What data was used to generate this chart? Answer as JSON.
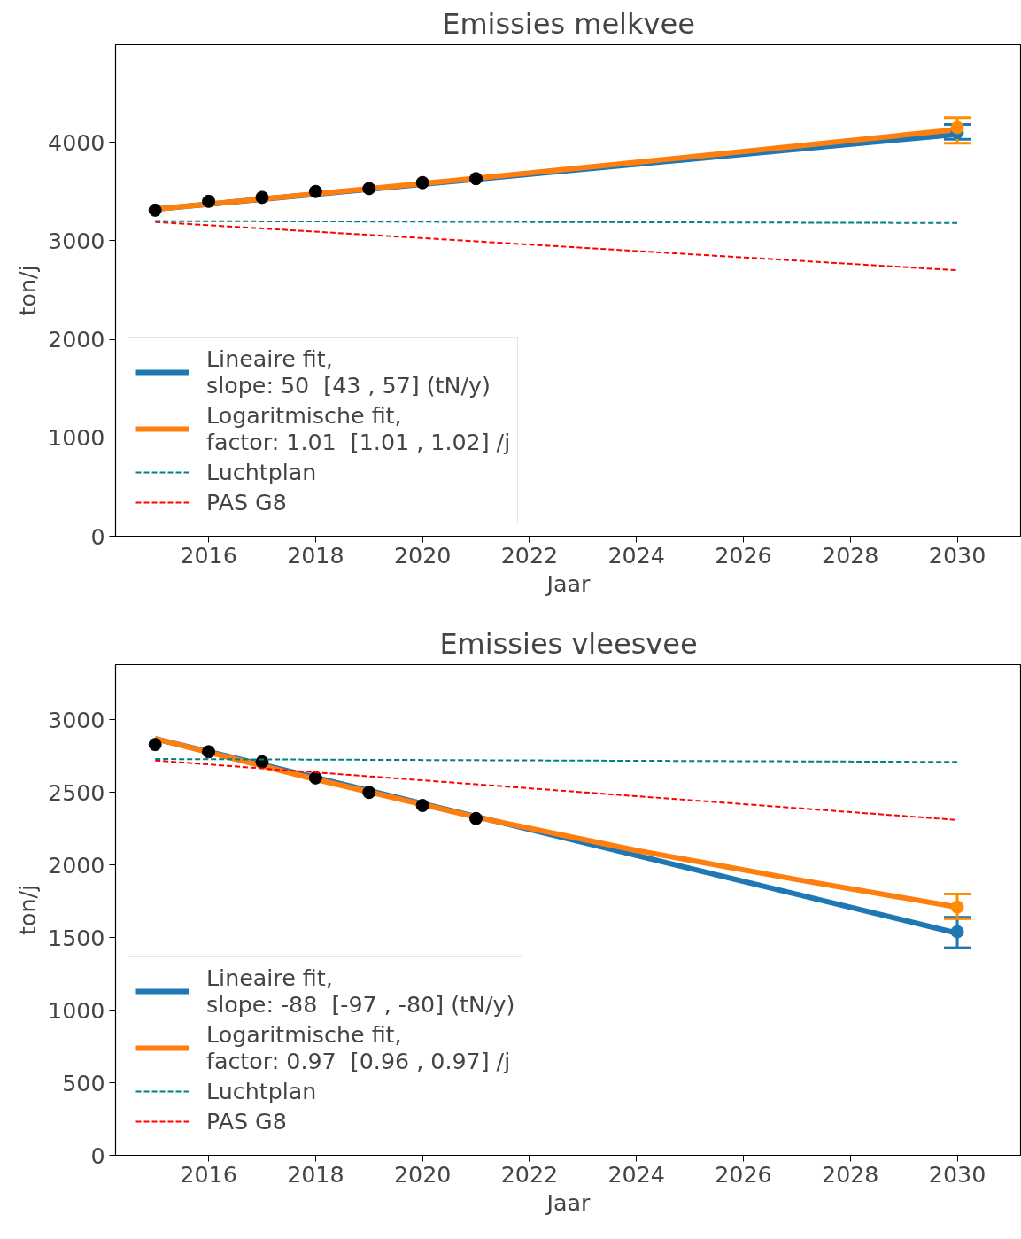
{
  "chart_data": [
    {
      "type": "line",
      "title": "Emissies melkvee",
      "xlabel": "Jaar",
      "ylabel": "ton/j",
      "xlim": [
        2014.26,
        2031.2
      ],
      "ylim": [
        0,
        4990
      ],
      "xticks": [
        2016,
        2018,
        2020,
        2022,
        2024,
        2026,
        2028,
        2030
      ],
      "yticks": [
        0,
        1000,
        2000,
        3000,
        4000
      ],
      "grid": false,
      "legend": "bottom left",
      "series": [
        {
          "name": "Lineaire fit,\nslope: 50  [43 , 57] (tN/y)",
          "color": "#1f77b4",
          "x": [
            2015,
            2030
          ],
          "values": [
            3320,
            4080
          ]
        },
        {
          "name": "Logaritmische fit,\nfactor: 1.01  [1.01 , 1.02] /j",
          "color": "#ff7f0e",
          "x": [
            2015,
            2020,
            2025,
            2030
          ],
          "values": [
            3320,
            3580,
            3850,
            4130
          ]
        },
        {
          "name": "Luchtplan",
          "color": "#008080",
          "line_style": "dashed",
          "x": [
            2015,
            2030
          ],
          "values": [
            3200,
            3180
          ]
        },
        {
          "name": "PAS G8",
          "color": "#ff0000",
          "line_style": "dashed",
          "x": [
            2015,
            2030
          ],
          "values": [
            3190,
            2700
          ]
        },
        {
          "color": "#000000",
          "type": "scatter",
          "marker": "circle",
          "x": [
            2015,
            2016,
            2017,
            2018,
            2019,
            2020,
            2021
          ],
          "values": [
            3310,
            3400,
            3440,
            3500,
            3530,
            3590,
            3630
          ]
        },
        {
          "color": "#1f77b4",
          "type": "scatter",
          "marker": "circle",
          "x": [
            2030
          ],
          "values": [
            4100
          ],
          "errors": [
            [
              4030,
              4180
            ]
          ]
        },
        {
          "color": "#ff8c00",
          "type": "scatter",
          "marker": "circle",
          "x": [
            2030
          ],
          "values": [
            4150
          ],
          "errors": [
            [
              3990,
              4250
            ]
          ]
        }
      ]
    },
    {
      "type": "line",
      "title": "Emissies vleesvee",
      "xlabel": "Jaar",
      "ylabel": "ton/j",
      "xlim": [
        2014.26,
        2031.2
      ],
      "ylim": [
        0,
        3380
      ],
      "xticks": [
        2016,
        2018,
        2020,
        2022,
        2024,
        2026,
        2028,
        2030
      ],
      "yticks": [
        0,
        500,
        1000,
        1500,
        2000,
        2500,
        3000
      ],
      "grid": false,
      "legend": "bottom left",
      "series": [
        {
          "name": "Lineaire fit,\nslope: -88  [-97 , -80] (tN/y)",
          "color": "#1f77b4",
          "x": [
            2015,
            2030
          ],
          "values": [
            2870,
            1530
          ]
        },
        {
          "name": "Logaritmische fit,\nfactor: 0.97  [0.96 , 0.97] /j",
          "color": "#ff7f0e",
          "x": [
            2015,
            2018,
            2021,
            2024,
            2027,
            2030
          ],
          "values": [
            2870,
            2590,
            2330,
            2100,
            1900,
            1710
          ]
        },
        {
          "name": "Luchtplan",
          "color": "#008080",
          "line_style": "dashed",
          "x": [
            2015,
            2030
          ],
          "values": [
            2730,
            2710
          ]
        },
        {
          "name": "PAS G8",
          "color": "#ff0000",
          "line_style": "dashed",
          "x": [
            2015,
            2030
          ],
          "values": [
            2720,
            2310
          ]
        },
        {
          "color": "#000000",
          "type": "scatter",
          "marker": "circle",
          "x": [
            2015,
            2016,
            2017,
            2018,
            2019,
            2020,
            2021
          ],
          "values": [
            2830,
            2780,
            2710,
            2600,
            2500,
            2410,
            2320
          ]
        },
        {
          "color": "#1f77b4",
          "type": "scatter",
          "marker": "circle",
          "x": [
            2030
          ],
          "values": [
            1540
          ],
          "errors": [
            [
              1430,
              1640
            ]
          ]
        },
        {
          "color": "#ff8c00",
          "type": "scatter",
          "marker": "circle",
          "x": [
            2030
          ],
          "values": [
            1710
          ],
          "errors": [
            [
              1630,
              1800
            ]
          ]
        }
      ]
    }
  ]
}
